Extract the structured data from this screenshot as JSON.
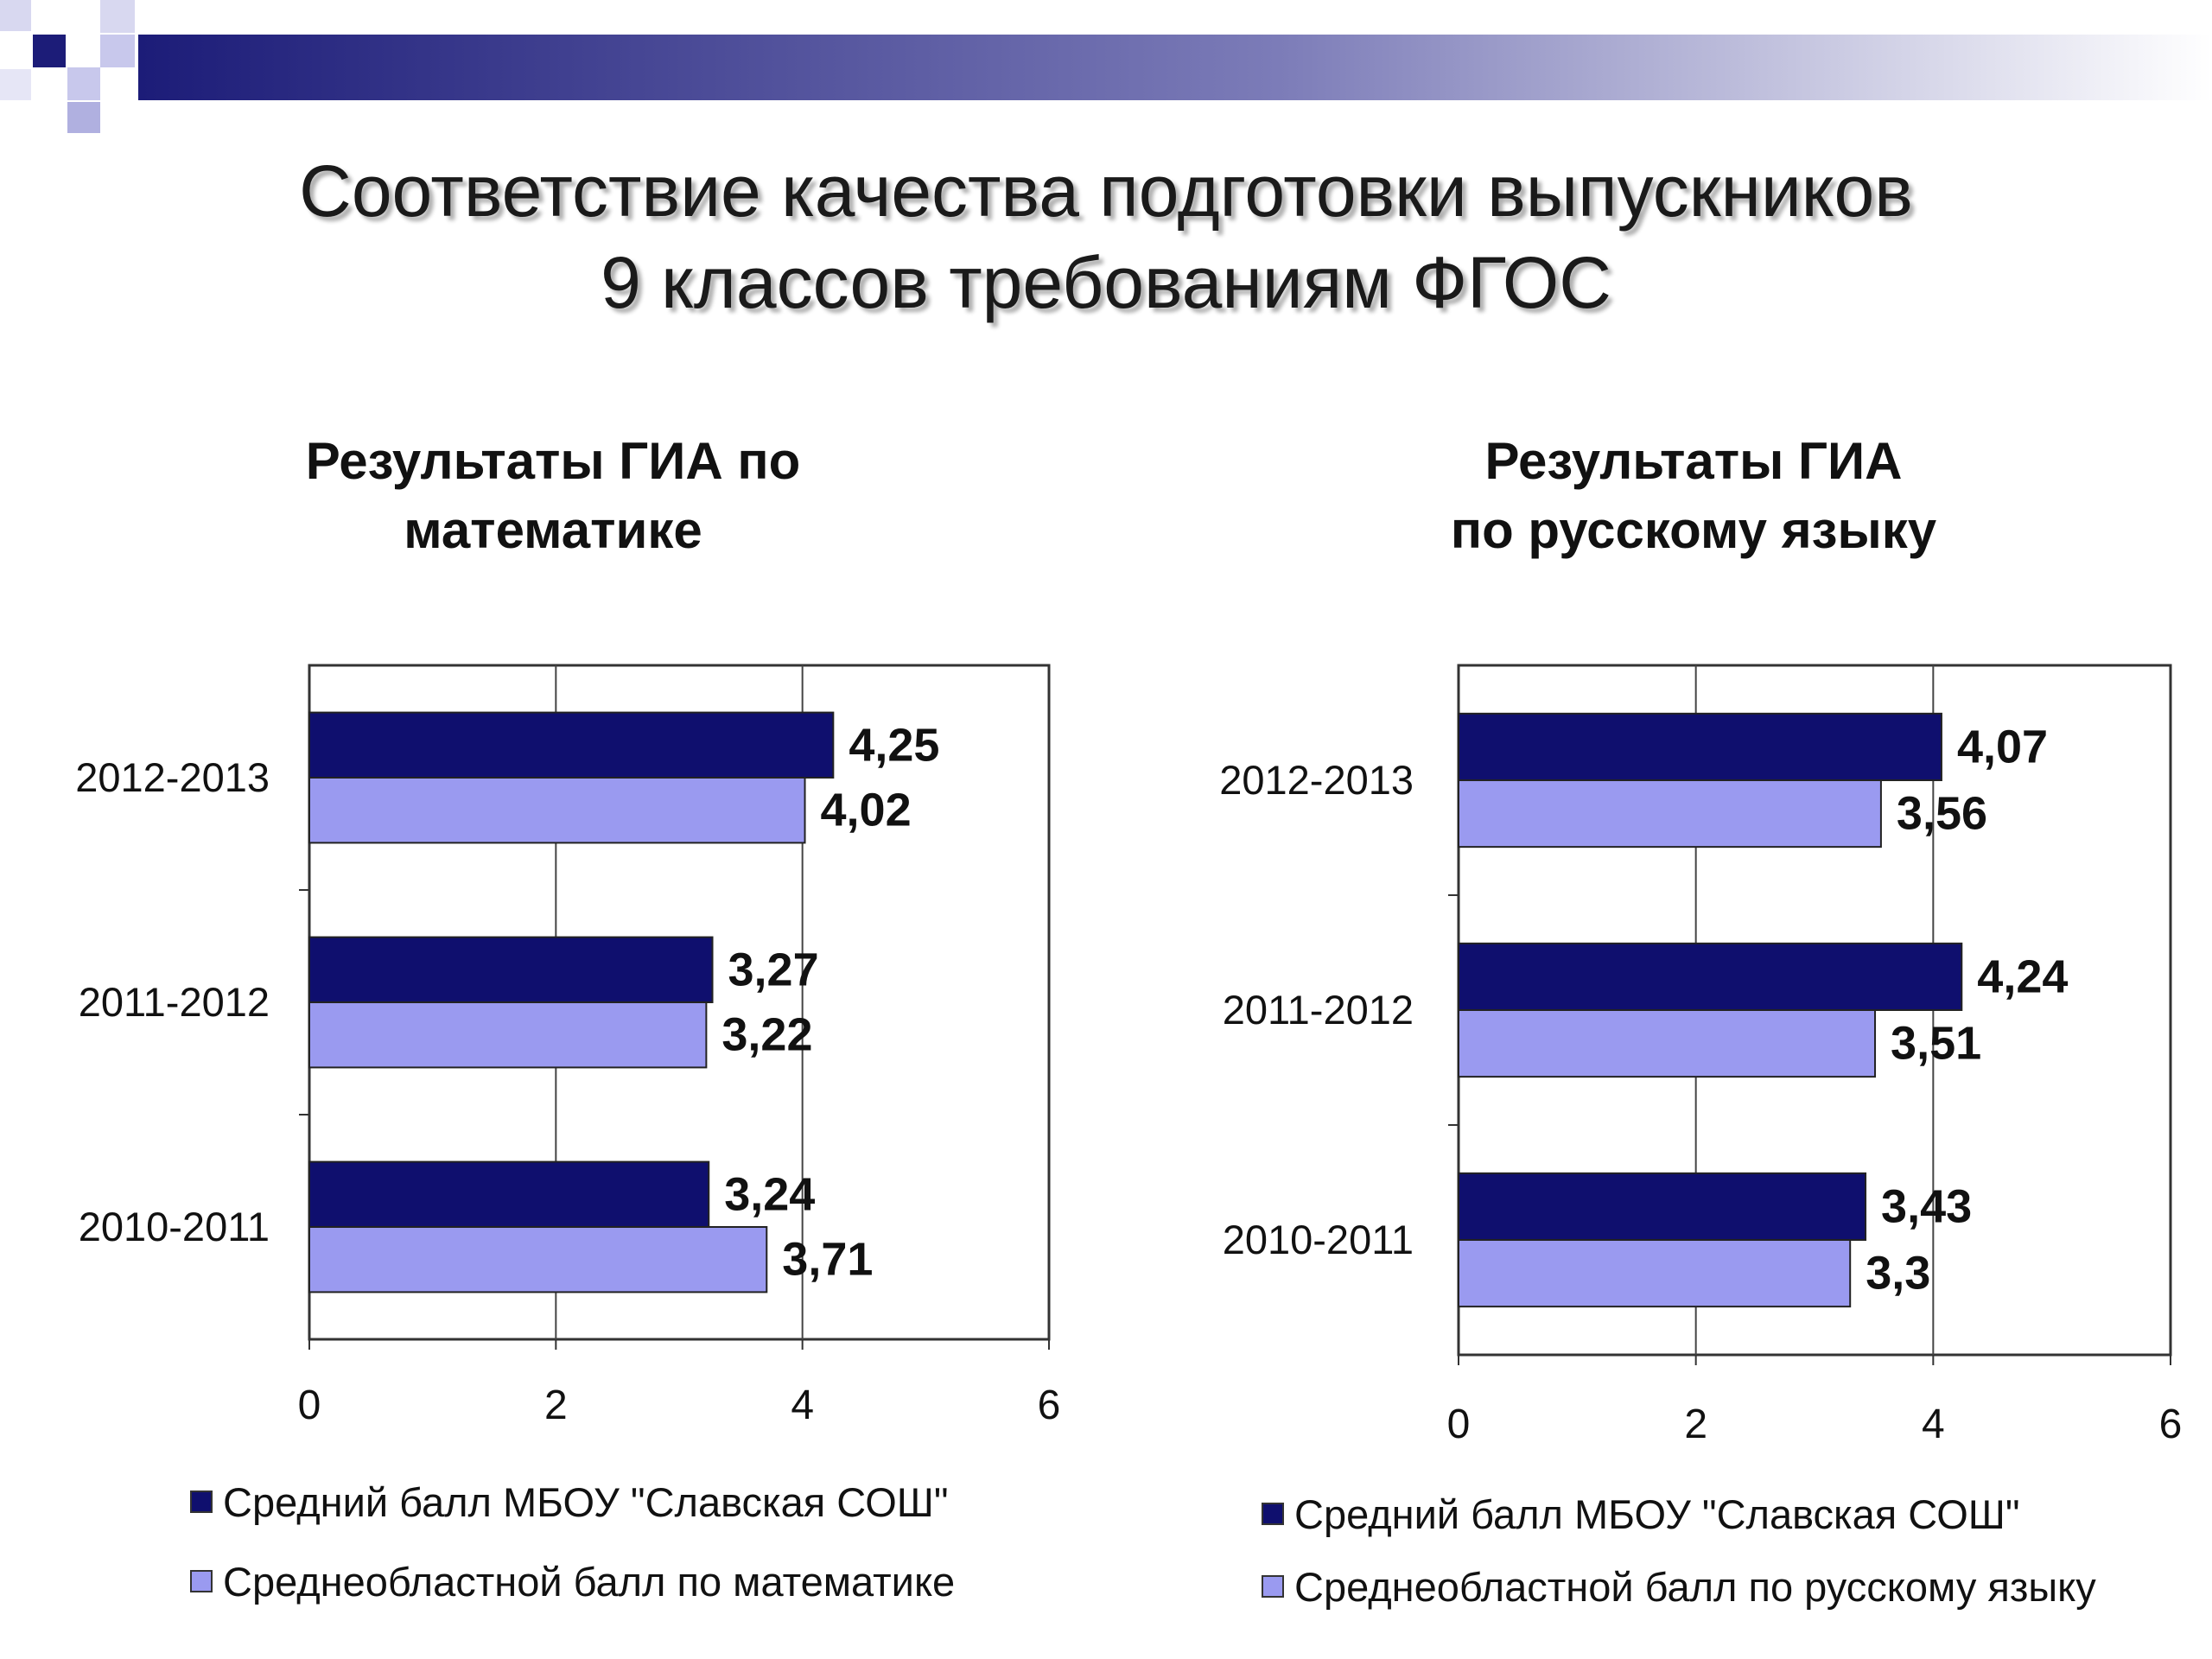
{
  "slide_title": {
    "line1": "Соответствие качества подготовки выпускников",
    "line2": "9 классов требованиям ФГОС"
  },
  "colors": {
    "school_bar": "#0f0f6e",
    "region_bar": "#9a9af0",
    "decor_dark": "#1c1c78",
    "decor_light": "#c8c8ec"
  },
  "chart_data": [
    {
      "type": "bar",
      "orientation": "horizontal",
      "title_line1": "Результаты ГИА по",
      "title_line2": "математике",
      "categories": [
        "2012-2013",
        "2011-2012",
        "2010-2011"
      ],
      "series": [
        {
          "name": "Средний балл МБОУ \"Славская СОШ\"",
          "values": [
            "4,25",
            "3,27",
            "3,24"
          ]
        },
        {
          "name": "Среднеобластной балл по математике",
          "values": [
            "4,02",
            "3,22",
            "3,71"
          ]
        }
      ],
      "xlim": [
        0,
        6
      ],
      "xticks": [
        "0",
        "2",
        "4",
        "6"
      ],
      "grid": true,
      "legend_position": "bottom"
    },
    {
      "type": "bar",
      "orientation": "horizontal",
      "title_line1": "Результаты  ГИА",
      "title_line2": "по русскому  языку",
      "categories": [
        "2012-2013",
        "2011-2012",
        "2010-2011"
      ],
      "series": [
        {
          "name": "Средний балл МБОУ \"Славская СОШ\"",
          "values": [
            "4,07",
            "4,24",
            "3,43"
          ]
        },
        {
          "name": "Среднеобластной балл по русскому языку",
          "values": [
            "3,56",
            "3,51",
            "3,3"
          ]
        }
      ],
      "xlim": [
        0,
        6
      ],
      "xticks": [
        "0",
        "2",
        "4",
        "6"
      ],
      "grid": true,
      "legend_position": "bottom"
    }
  ]
}
